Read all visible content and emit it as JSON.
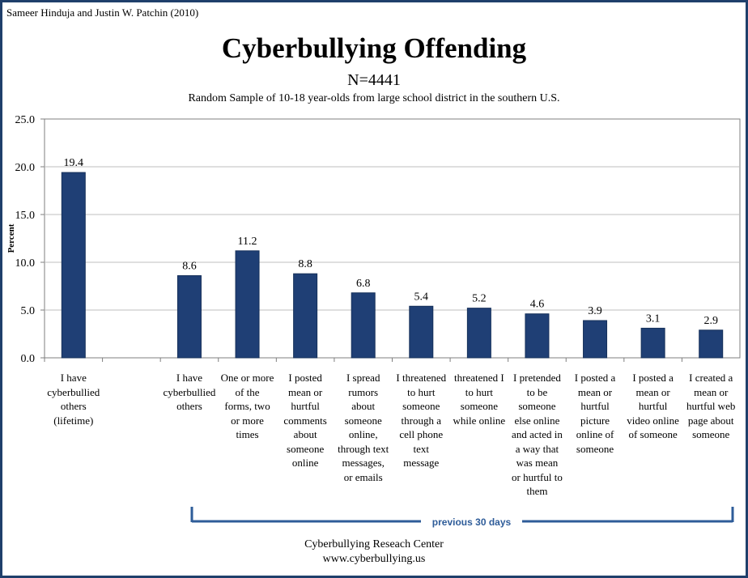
{
  "credit": "Sameer Hinduja and Justin W. Patchin (2010)",
  "footer": {
    "line1": "Cyberbullying Reseach Center",
    "line2": "www.cyberbullying.us"
  },
  "colors": {
    "bar": "#1f3f75",
    "border": "#1f3f6b",
    "bracket": "#2e5c99",
    "plot_bg": "#ffffff",
    "grid": "#bfbfbf"
  },
  "chart_data": {
    "type": "bar",
    "title": "Cyberbullying Offending",
    "subtitle": "N=4441",
    "subtitle2": "Random Sample of 10-18 year-olds from large school district in the southern U.S.",
    "xlabel": "",
    "ylabel": "Percent",
    "ylim": [
      0,
      25
    ],
    "yticks": [
      "0.0",
      "5.0",
      "10.0",
      "15.0",
      "20.0",
      "25.0"
    ],
    "grid": true,
    "categories": [
      "I have cyberbullied others (lifetime)",
      "",
      "I have cyberbullied others",
      "One or more of the forms, two or more times",
      "I posted mean or hurtful comments about someone online",
      "I spread rumors about someone online, through text messages, or emails",
      "I threatened to hurt someone through a cell phone text message",
      "I threatened to hurt someone while online",
      "I pretended to be someone else online and acted in a way that was mean or hurtful to them",
      "I posted a mean or hurtful picture online of someone",
      "I posted a mean or hurtful video online of someone",
      "I created a mean or hurtful web page about someone"
    ],
    "category_lines": [
      [
        "I have",
        "cyberbullied",
        "others",
        "(lifetime)"
      ],
      [],
      [
        "I have",
        "cyberbullied",
        "others"
      ],
      [
        "One or more",
        "of the",
        "forms, two",
        "or more",
        "times"
      ],
      [
        "I posted",
        "mean or",
        "hurtful",
        "comments",
        "about",
        "someone",
        "online"
      ],
      [
        "I spread",
        "rumors",
        "about",
        "someone",
        "online,",
        "through text",
        "messages,",
        "or emails"
      ],
      [
        "I threatened",
        "to hurt",
        "someone",
        "through a",
        "cell phone",
        "text",
        "message"
      ],
      [
        "threatened I",
        "to hurt",
        "someone",
        "while online"
      ],
      [
        "I pretended",
        "to be",
        "someone",
        "else online",
        "and acted in",
        "a way that",
        "was mean",
        "or hurtful to",
        "them"
      ],
      [
        "I posted a",
        "mean or",
        "hurtful",
        "picture",
        "online of",
        "someone"
      ],
      [
        "I posted a",
        "mean or",
        "hurtful",
        "video online",
        "of someone"
      ],
      [
        "I created a",
        "mean or",
        "hurtful web",
        "page about",
        "someone"
      ]
    ],
    "values": [
      19.4,
      null,
      8.6,
      11.2,
      8.8,
      6.8,
      5.4,
      5.2,
      4.6,
      3.9,
      3.1,
      2.9
    ],
    "data_labels": [
      "19.4",
      "",
      "8.6",
      "11.2",
      "8.8",
      "6.8",
      "5.4",
      "5.2",
      "4.6",
      "3.9",
      "3.1",
      "2.9"
    ],
    "bracket_label": "previous 30 days"
  }
}
